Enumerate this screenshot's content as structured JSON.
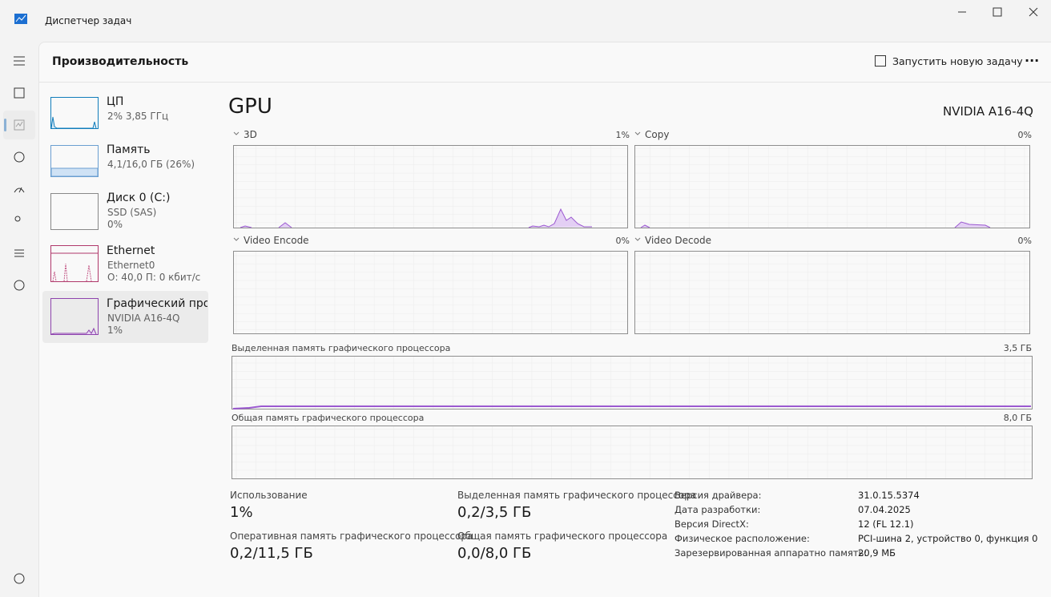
{
  "window": {
    "title": "Диспетчер задач"
  },
  "header": {
    "title": "Производительность",
    "run_task": "Запустить новую задачу"
  },
  "sidebar": [
    {
      "name": "ЦП",
      "line1": "2%  3,85 ГГц"
    },
    {
      "name": "Память",
      "line1": "4,1/16,0 ГБ (26%)"
    },
    {
      "name": "Диск 0 (C:)",
      "line1": "SSD (SAS)",
      "line2": "0%"
    },
    {
      "name": "Ethernet",
      "line1": "Ethernet0",
      "line2": "О: 40,0  П: 0 кбит/с"
    },
    {
      "name": "Графический про",
      "line1": "NVIDIA A16-4Q",
      "line2": "1%"
    }
  ],
  "gpu": {
    "title": "GPU",
    "device": "NVIDIA A16-4Q",
    "graphs": [
      {
        "label": "3D",
        "value": "1%"
      },
      {
        "label": "Copy",
        "value": "0%"
      },
      {
        "label": "Video Encode",
        "value": "0%"
      },
      {
        "label": "Video Decode",
        "value": "0%"
      }
    ],
    "memory_graphs": [
      {
        "label": "Выделенная память графического процессора",
        "max": "3,5 ГБ"
      },
      {
        "label": "Общая память графического процессора",
        "max": "8,0 ГБ"
      }
    ],
    "stats": [
      {
        "label": "Использование",
        "value": "1%"
      },
      {
        "label": "Выделенная память графического процессора",
        "value": "0,2/3,5 ГБ"
      },
      {
        "label": "Оперативная память графического процессора",
        "value": "0,2/11,5 ГБ"
      },
      {
        "label": "Общая память графического процессора",
        "value": "0,0/8,0 ГБ"
      }
    ],
    "details": [
      {
        "label": "Версия драйвера:",
        "value": "31.0.15.5374"
      },
      {
        "label": "Дата разработки:",
        "value": "07.04.2025"
      },
      {
        "label": "Версия DirectX:",
        "value": "12 (FL 12.1)"
      },
      {
        "label": "Физическое расположение:",
        "value": "PCI-шина 2, устройство 0, функция 0"
      },
      {
        "label": "Зарезервированная аппаратно память:",
        "value": "20,9 МБ"
      }
    ]
  }
}
